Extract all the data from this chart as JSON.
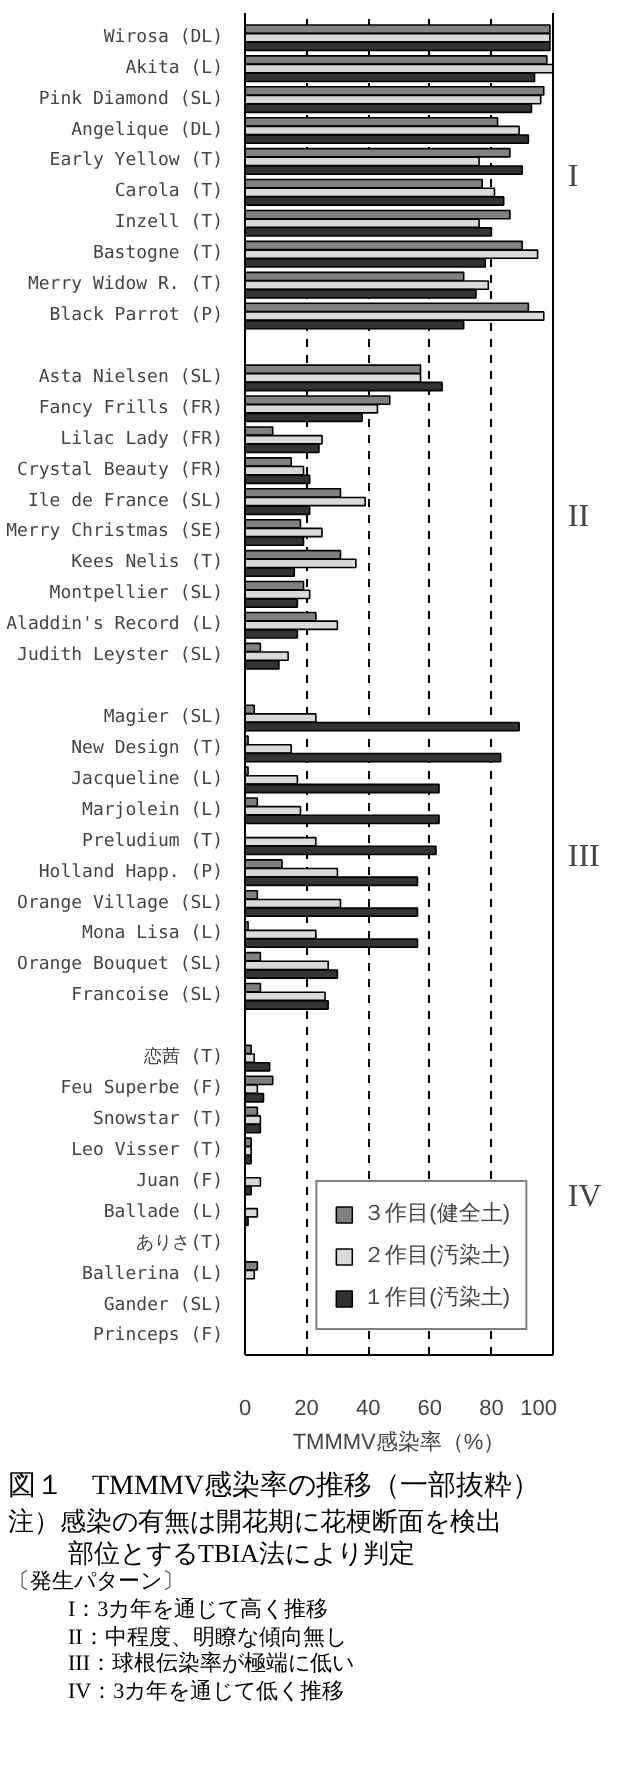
{
  "chart_data": {
    "type": "bar",
    "orientation": "horizontal",
    "title": "図１　TMMMV感染率の推移（一部抜粋）",
    "xlabel": "TMMMV感染率（%）",
    "categories": [
      "Wirosa (DL)",
      "Akita (L)",
      "Pink Diamond (SL)",
      "Angelique (DL)",
      "Early Yellow (T)",
      "Carola (T)",
      "Inzell (T)",
      "Bastogne (T)",
      "Merry Widow R. (T)",
      "Black Parrot (P)",
      null,
      "Asta Nielsen (SL)",
      "Fancy Frills (FR)",
      "Lilac Lady (FR)",
      "Crystal Beauty (FR)",
      "Ile de France (SL)",
      "Merry Christmas (SE)",
      "Kees Nelis (T)",
      "Montpellier (SL)",
      "Aladdin's Record (L)",
      "Judith Leyster (SL)",
      null,
      "Magier (SL)",
      "New Design (T)",
      "Jacqueline (L)",
      "Marjolein (L)",
      "Preludium (T)",
      "Holland Happ. (P)",
      "Orange Village (SL)",
      "Mona Lisa (L)",
      "Orange Bouquet (SL)",
      "Francoise (SL)",
      null,
      "恋茜 (T)",
      "Feu Superbe (F)",
      "Snowstar (T)",
      "Leo Visser (T)",
      "Juan (F)",
      "Ballade (L)",
      "ありさ(T)",
      "Ballerina (L)",
      "Gander (SL)",
      "Princeps (F)"
    ],
    "series": [
      {
        "name": "３作目(健全土)",
        "color": "#808080",
        "values": [
          99,
          98,
          97,
          82,
          86,
          77,
          86,
          90,
          71,
          92,
          null,
          57,
          47,
          9,
          15,
          31,
          18,
          31,
          19,
          23,
          5,
          null,
          3,
          1,
          1,
          4,
          0,
          12,
          4,
          1,
          5,
          5,
          null,
          2,
          9,
          4,
          2,
          0,
          0,
          0,
          4,
          0,
          0
        ]
      },
      {
        "name": "２作目(汚染土)",
        "color": "#d9d9d9",
        "values": [
          99,
          100,
          96,
          89,
          76,
          81,
          76,
          95,
          79,
          97,
          null,
          57,
          43,
          25,
          19,
          39,
          25,
          36,
          21,
          30,
          14,
          null,
          23,
          15,
          17,
          18,
          23,
          30,
          31,
          23,
          27,
          26,
          null,
          3,
          4,
          5,
          2,
          5,
          4,
          0,
          3,
          0,
          0
        ]
      },
      {
        "name": "１作目(汚染土)",
        "color": "#333333",
        "values": [
          99,
          94,
          93,
          92,
          90,
          84,
          80,
          78,
          75,
          71,
          null,
          64,
          38,
          24,
          21,
          21,
          19,
          16,
          17,
          17,
          11,
          null,
          89,
          83,
          63,
          63,
          62,
          56,
          56,
          56,
          30,
          27,
          null,
          8,
          6,
          5,
          2,
          2,
          1,
          0,
          0,
          0,
          0
        ]
      }
    ],
    "xlim": [
      0,
      100
    ],
    "xticks": [
      0,
      20,
      40,
      60,
      80,
      100
    ],
    "grid": "x",
    "legend": "bottom right",
    "annotations": [
      "I",
      "II",
      "III",
      "IV",
      "注）感染の有無は開花期に花梗断面を検出",
      "部位とするTBIA法により判定",
      "〔発生パターン〕",
      "I：3カ年を通じて高く推移",
      "II：中程度、明瞭な傾向無し",
      "III：球根伝染率が極端に低い",
      "IV：3カ年を通じて低く推移"
    ]
  }
}
